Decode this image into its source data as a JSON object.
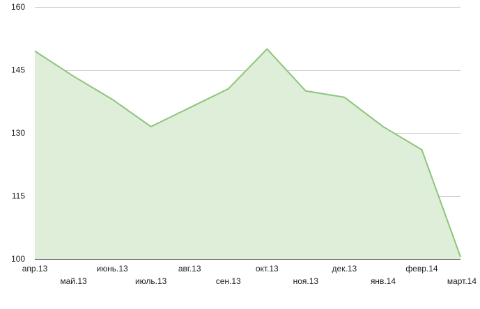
{
  "chart_data": {
    "type": "area",
    "title": "",
    "xlabel": "",
    "ylabel": "",
    "categories": [
      "апр.13",
      "май.13",
      "июнь.13",
      "июль.13",
      "авг.13",
      "сен.13",
      "окт.13",
      "ноя.13",
      "дек.13",
      "янв.14",
      "февр.14",
      "март.14"
    ],
    "series": [
      {
        "values": [
          149.5,
          143.5,
          138,
          131.5,
          136,
          140.5,
          150,
          140,
          138.5,
          131.5,
          126,
          100.5
        ]
      }
    ],
    "ylim": [
      100,
      160
    ],
    "yticks": [
      100,
      115,
      130,
      145,
      160
    ],
    "grid": true,
    "legend": "none",
    "colors": {
      "line": "#8cc57a",
      "fill": "#deeed8",
      "grid": "#cccccc",
      "axis": "#333333"
    }
  }
}
